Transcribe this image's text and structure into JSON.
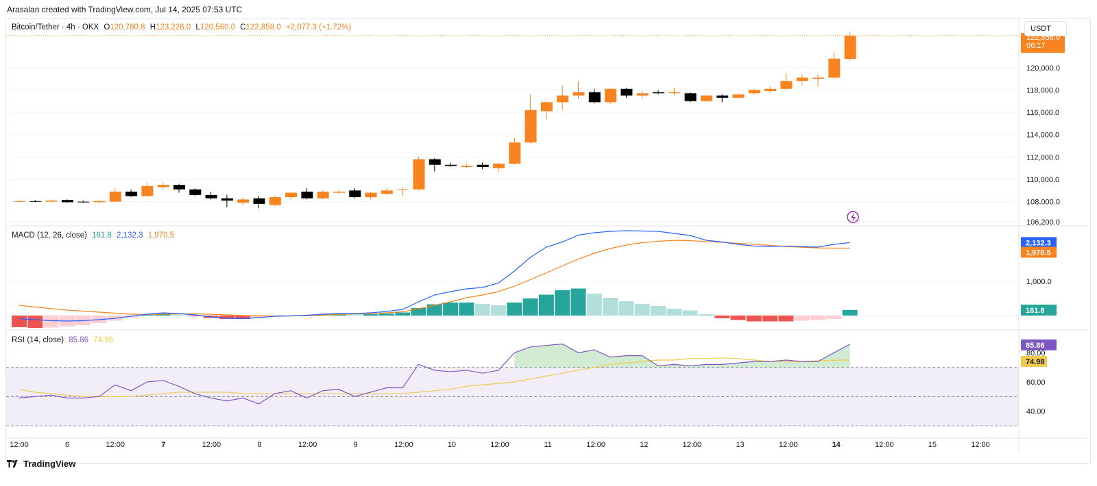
{
  "header": {
    "created_line": "Arasalan created with TradingView.com, Jul 14, 2025 07:53 UTC"
  },
  "symbol_legend": {
    "symbol": "Bitcoin/Tether · 4h · OKX",
    "open_label": "O",
    "open": "120,780.8",
    "high_label": "H",
    "high": "123,226.0",
    "low_label": "L",
    "low": "120,560.0",
    "close_label": "C",
    "close": "122,858.0",
    "change": "+2,077.3 (+1.72%)"
  },
  "currency": "USDT",
  "price_tag": {
    "price": "122,858.0",
    "countdown": "06:17"
  },
  "macd_legend": {
    "title": "MACD (12, 26, close)",
    "hist": "161.8",
    "macd": "2,132.3",
    "signal": "1,970.5"
  },
  "rsi_legend": {
    "title": "RSI (14, close)",
    "rsi": "85.86",
    "ma": "74.98"
  },
  "brand": "TradingView",
  "colors": {
    "up": "#f7841e",
    "down": "#000000",
    "macd": "#2962ff",
    "signal": "#f7841e",
    "hist_pos_strong": "#26a69a",
    "hist_pos_weak": "#b2dfdb",
    "hist_neg_strong": "#ef5350",
    "hist_neg_weak": "#ffcdd2",
    "rsi": "#7e57c2",
    "rsi_ma": "#f2c94c",
    "rsi_band": "#7e57c2"
  },
  "chart_data": [
    {
      "type": "candlestick",
      "title": "Bitcoin/Tether · 4h · OKX",
      "y_ticks": [
        "106,200.0",
        "108,000.0",
        "110,000.0",
        "112,000.0",
        "114,000.0",
        "116,000.0",
        "118,000.0",
        "120,000.0"
      ],
      "ylim": [
        106200,
        123600
      ],
      "x_ticks": [
        "12:00",
        "6",
        "12:00",
        "7",
        "12:00",
        "8",
        "12:00",
        "9",
        "12:00",
        "10",
        "12:00",
        "11",
        "12:00",
        "12",
        "12:00",
        "13",
        "12:00",
        "14",
        "12:00",
        "15",
        "12:00"
      ],
      "candles": [
        {
          "o": 108000,
          "h": 108100,
          "l": 107950,
          "c": 108050
        },
        {
          "o": 108050,
          "h": 108150,
          "l": 107950,
          "c": 108000
        },
        {
          "o": 108000,
          "h": 108200,
          "l": 107950,
          "c": 108100
        },
        {
          "o": 108150,
          "h": 108200,
          "l": 107900,
          "c": 107950
        },
        {
          "o": 108000,
          "h": 108100,
          "l": 107900,
          "c": 107950
        },
        {
          "o": 107950,
          "h": 108100,
          "l": 107900,
          "c": 108050
        },
        {
          "o": 108000,
          "h": 109200,
          "l": 107950,
          "c": 108900
        },
        {
          "o": 108900,
          "h": 109100,
          "l": 108400,
          "c": 108500
        },
        {
          "o": 108500,
          "h": 109700,
          "l": 108400,
          "c": 109400
        },
        {
          "o": 109300,
          "h": 109700,
          "l": 109100,
          "c": 109500
        },
        {
          "o": 109500,
          "h": 109600,
          "l": 108800,
          "c": 109100
        },
        {
          "o": 109100,
          "h": 109200,
          "l": 108500,
          "c": 108600
        },
        {
          "o": 108600,
          "h": 108900,
          "l": 108200,
          "c": 108300
        },
        {
          "o": 108300,
          "h": 108600,
          "l": 107500,
          "c": 108100
        },
        {
          "o": 107900,
          "h": 108400,
          "l": 107700,
          "c": 108200
        },
        {
          "o": 108300,
          "h": 108500,
          "l": 107400,
          "c": 107800
        },
        {
          "o": 107700,
          "h": 108500,
          "l": 107600,
          "c": 108400
        },
        {
          "o": 108400,
          "h": 108900,
          "l": 108200,
          "c": 108800
        },
        {
          "o": 108900,
          "h": 109200,
          "l": 108200,
          "c": 108300
        },
        {
          "o": 108300,
          "h": 109000,
          "l": 108200,
          "c": 108900
        },
        {
          "o": 108800,
          "h": 109000,
          "l": 108700,
          "c": 108900
        },
        {
          "o": 109000,
          "h": 109200,
          "l": 108300,
          "c": 108400
        },
        {
          "o": 108400,
          "h": 108900,
          "l": 108200,
          "c": 108800
        },
        {
          "o": 108700,
          "h": 109200,
          "l": 108600,
          "c": 109000
        },
        {
          "o": 109100,
          "h": 109300,
          "l": 108500,
          "c": 109100
        },
        {
          "o": 109100,
          "h": 112000,
          "l": 109000,
          "c": 111800
        },
        {
          "o": 111800,
          "h": 111900,
          "l": 110700,
          "c": 111300
        },
        {
          "o": 111300,
          "h": 111500,
          "l": 111100,
          "c": 111200
        },
        {
          "o": 111100,
          "h": 111400,
          "l": 111000,
          "c": 111200
        },
        {
          "o": 111300,
          "h": 111500,
          "l": 110900,
          "c": 111100
        },
        {
          "o": 111000,
          "h": 111500,
          "l": 110600,
          "c": 111400
        },
        {
          "o": 111400,
          "h": 113700,
          "l": 111300,
          "c": 113300
        },
        {
          "o": 113300,
          "h": 117600,
          "l": 113200,
          "c": 116200
        },
        {
          "o": 116100,
          "h": 117000,
          "l": 115400,
          "c": 116900
        },
        {
          "o": 116900,
          "h": 118400,
          "l": 116200,
          "c": 117500
        },
        {
          "o": 117500,
          "h": 118800,
          "l": 117200,
          "c": 117800
        },
        {
          "o": 117800,
          "h": 118100,
          "l": 116800,
          "c": 116900
        },
        {
          "o": 116900,
          "h": 118200,
          "l": 116700,
          "c": 118100
        },
        {
          "o": 118100,
          "h": 118200,
          "l": 117300,
          "c": 117500
        },
        {
          "o": 117500,
          "h": 117900,
          "l": 117200,
          "c": 117700
        },
        {
          "o": 117800,
          "h": 118000,
          "l": 117600,
          "c": 117700
        },
        {
          "o": 117700,
          "h": 118200,
          "l": 117500,
          "c": 117800
        },
        {
          "o": 117700,
          "h": 117800,
          "l": 116900,
          "c": 117000
        },
        {
          "o": 117000,
          "h": 117500,
          "l": 116900,
          "c": 117500
        },
        {
          "o": 117500,
          "h": 117600,
          "l": 116900,
          "c": 117300
        },
        {
          "o": 117300,
          "h": 117700,
          "l": 117200,
          "c": 117600
        },
        {
          "o": 117700,
          "h": 118100,
          "l": 117600,
          "c": 118000
        },
        {
          "o": 117900,
          "h": 118300,
          "l": 117700,
          "c": 118100
        },
        {
          "o": 118100,
          "h": 119500,
          "l": 118000,
          "c": 118800
        },
        {
          "o": 118800,
          "h": 119400,
          "l": 118400,
          "c": 119100
        },
        {
          "o": 119000,
          "h": 119400,
          "l": 118300,
          "c": 119100
        },
        {
          "o": 119100,
          "h": 121400,
          "l": 119000,
          "c": 120800
        },
        {
          "o": 120780.8,
          "h": 123226,
          "l": 120560,
          "c": 122858
        }
      ],
      "last_price": 122858
    },
    {
      "type": "line",
      "title": "MACD (12, 26, close)",
      "y_ticks": [
        "1,000.0"
      ],
      "macd": [
        -90,
        -120,
        -150,
        -160,
        -150,
        -120,
        -80,
        -20,
        40,
        80,
        60,
        20,
        -40,
        -80,
        -90,
        -60,
        -20,
        -10,
        10,
        40,
        60,
        60,
        80,
        120,
        180,
        400,
        600,
        700,
        780,
        820,
        950,
        1300,
        1700,
        2000,
        2150,
        2350,
        2420,
        2460,
        2480,
        2470,
        2460,
        2400,
        2340,
        2200,
        2150,
        2080,
        2030,
        2020,
        2030,
        2010,
        2000,
        2080,
        2132.3
      ],
      "signal": [
        300,
        250,
        200,
        160,
        130,
        100,
        70,
        40,
        30,
        40,
        50,
        50,
        40,
        20,
        0,
        -10,
        -10,
        -10,
        -5,
        10,
        30,
        50,
        60,
        80,
        110,
        200,
        300,
        400,
        520,
        600,
        700,
        860,
        1050,
        1250,
        1450,
        1650,
        1820,
        1960,
        2060,
        2130,
        2170,
        2200,
        2190,
        2160,
        2140,
        2110,
        2080,
        2050,
        2020,
        1995,
        1975,
        1970,
        1970.5
      ],
      "histogram": [
        -340,
        -360,
        -350,
        -320,
        -280,
        -220,
        -150,
        -60,
        20,
        60,
        30,
        -20,
        -70,
        -100,
        -100,
        -60,
        -20,
        -10,
        10,
        40,
        60,
        40,
        40,
        60,
        90,
        220,
        330,
        380,
        380,
        340,
        300,
        380,
        500,
        610,
        740,
        790,
        640,
        520,
        420,
        340,
        280,
        200,
        150,
        40,
        -80,
        -130,
        -170,
        -170,
        -170,
        -150,
        -130,
        -100,
        161.8
      ]
    },
    {
      "type": "line",
      "title": "RSI (14, close)",
      "y_ticks": [
        "40.00",
        "60.00",
        "80.00"
      ],
      "ylim": [
        30,
        90
      ],
      "bands": [
        30,
        50,
        70
      ],
      "rsi": [
        49,
        50,
        51,
        49,
        49,
        50,
        58,
        54,
        60,
        61,
        57,
        52,
        49,
        47,
        49,
        45,
        52,
        54,
        49,
        54,
        55,
        50,
        53,
        56,
        56,
        72,
        68,
        67,
        68,
        66,
        68,
        80,
        84,
        85,
        86,
        80,
        82,
        77,
        78,
        78,
        71,
        72,
        71,
        72,
        72,
        73,
        74,
        74,
        75,
        74,
        74,
        80,
        85.86
      ],
      "rsi_ma": [
        55,
        53,
        52,
        51,
        50,
        50,
        50,
        50,
        51,
        52,
        53,
        53,
        53,
        53,
        52,
        52,
        52,
        52,
        52,
        52,
        52,
        52,
        52,
        52,
        52,
        53,
        54,
        55,
        57,
        58,
        59,
        60,
        62,
        64,
        66,
        68,
        70,
        72,
        73,
        74,
        75,
        75,
        76,
        76,
        76.5,
        76,
        75,
        74,
        74,
        74,
        74.5,
        74.9,
        74.98
      ]
    }
  ]
}
